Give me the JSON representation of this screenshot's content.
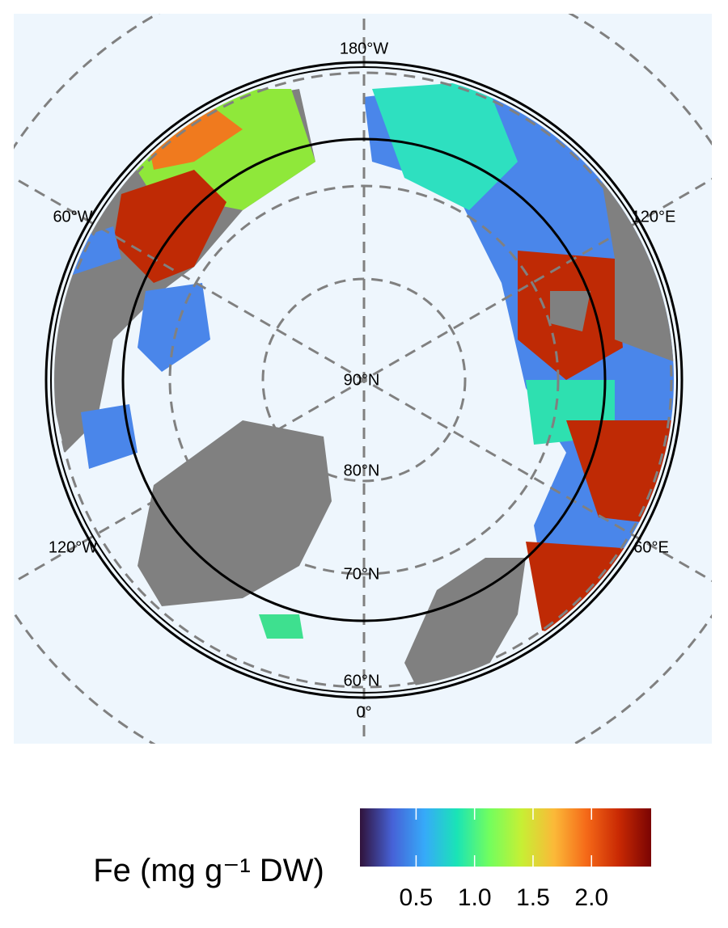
{
  "map": {
    "meridian_labels": [
      "180°W",
      "120°E",
      "60°E",
      "0°",
      "60°W",
      "120°W"
    ],
    "parallel_labels": [
      "90°N",
      "80°N",
      "70°N",
      "60°N"
    ],
    "legend": {
      "title": "Fe (mg g⁻¹ DW)",
      "range": [
        0.02,
        2.51
      ],
      "ticks": [
        0.5,
        {
          "value": 1,
          "label": "1.0"
        },
        1.5,
        {
          "value": 2,
          "label": "2.0"
        }
      ],
      "colors": [
        "#30123b",
        "#4662d7",
        "#36aaf9",
        "#1ae4b6",
        "#72fe5e",
        "#c7ef34",
        "#fbb938",
        "#f56918",
        "#c92903",
        "#7a0403"
      ]
    }
  }
}
